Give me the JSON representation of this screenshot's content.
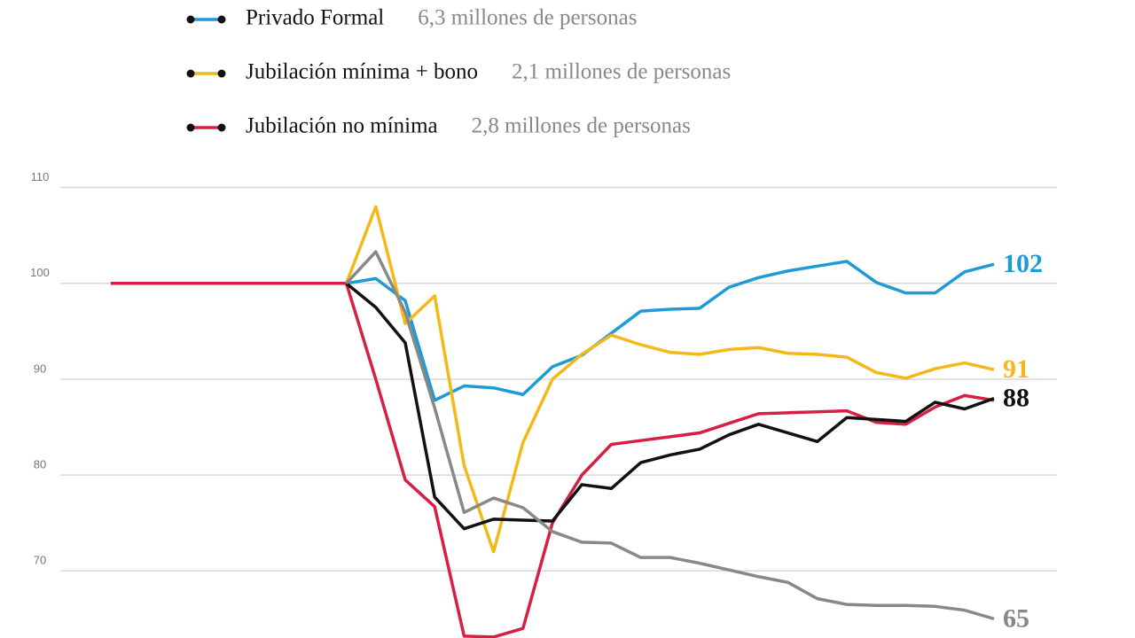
{
  "chart_data": {
    "type": "line",
    "categories": [
      null,
      null,
      null,
      null,
      null,
      null,
      null,
      null,
      null,
      null,
      null,
      null,
      null,
      null,
      null,
      null,
      null,
      null,
      null,
      null,
      null,
      null,
      null,
      null,
      null,
      null,
      null,
      null,
      null,
      null,
      null
    ],
    "series": [
      {
        "name": "Privado Formal",
        "description": "6,3 millones de personas",
        "color": "#1e9bd7",
        "label_end": true,
        "values": [
          null,
          null,
          null,
          null,
          null,
          null,
          null,
          null,
          100,
          100.5,
          98.2,
          87.8,
          89.3,
          89.1,
          88.4,
          91.3,
          92.5,
          94.8,
          97.1,
          97.3,
          97.4,
          99.6,
          100.6,
          101.3,
          101.8,
          102.3,
          100.1,
          99,
          99,
          101.2,
          102
        ]
      },
      {
        "name": "Jubilación mínima + bono",
        "description": "2,1 millones de personas",
        "color": "#f4b918",
        "label_end": true,
        "values": [
          null,
          null,
          null,
          null,
          null,
          null,
          null,
          null,
          100,
          108,
          95.8,
          98.7,
          81,
          72,
          83.4,
          90,
          92.6,
          94.6,
          93.6,
          92.8,
          92.6,
          93.1,
          93.3,
          92.7,
          92.6,
          92.3,
          90.7,
          90.1,
          91.1,
          91.7,
          91
        ]
      },
      {
        "name": "Jubilación no mínima",
        "description": "2,8 millones de personas",
        "color": "#d71e44",
        "label_end": false,
        "values": [
          100,
          100,
          100,
          100,
          100,
          100,
          100,
          100,
          100,
          90,
          79.5,
          76.7,
          63.2,
          63.1,
          64,
          75,
          80,
          83.2,
          83.6,
          84,
          84.4,
          85.4,
          86.4,
          86.5,
          86.6,
          86.7,
          85.5,
          85.3,
          87.1,
          88.3,
          87.8
        ]
      },
      {
        "color": "#111111",
        "label_end": true,
        "values": [
          null,
          null,
          null,
          null,
          null,
          null,
          null,
          null,
          100,
          97.5,
          93.8,
          77.7,
          74.4,
          75.4,
          75.3,
          75.2,
          79,
          78.6,
          81.3,
          82.1,
          82.7,
          84.2,
          85.3,
          84.4,
          83.5,
          86,
          85.8,
          85.6,
          87.6,
          86.9,
          88
        ]
      },
      {
        "color": "#888888",
        "label_end": true,
        "values": [
          null,
          null,
          null,
          null,
          null,
          null,
          null,
          null,
          100,
          103.3,
          97,
          87,
          76.1,
          77.6,
          76.6,
          74.1,
          73,
          72.9,
          71.4,
          71.4,
          70.8,
          70.1,
          69.4,
          68.8,
          67.1,
          66.5,
          66.4,
          66.4,
          66.3,
          65.9,
          65
        ]
      }
    ],
    "ylim": [
      63,
      112
    ],
    "yticks": [
      70,
      80,
      90,
      100,
      110
    ],
    "grid": true
  }
}
